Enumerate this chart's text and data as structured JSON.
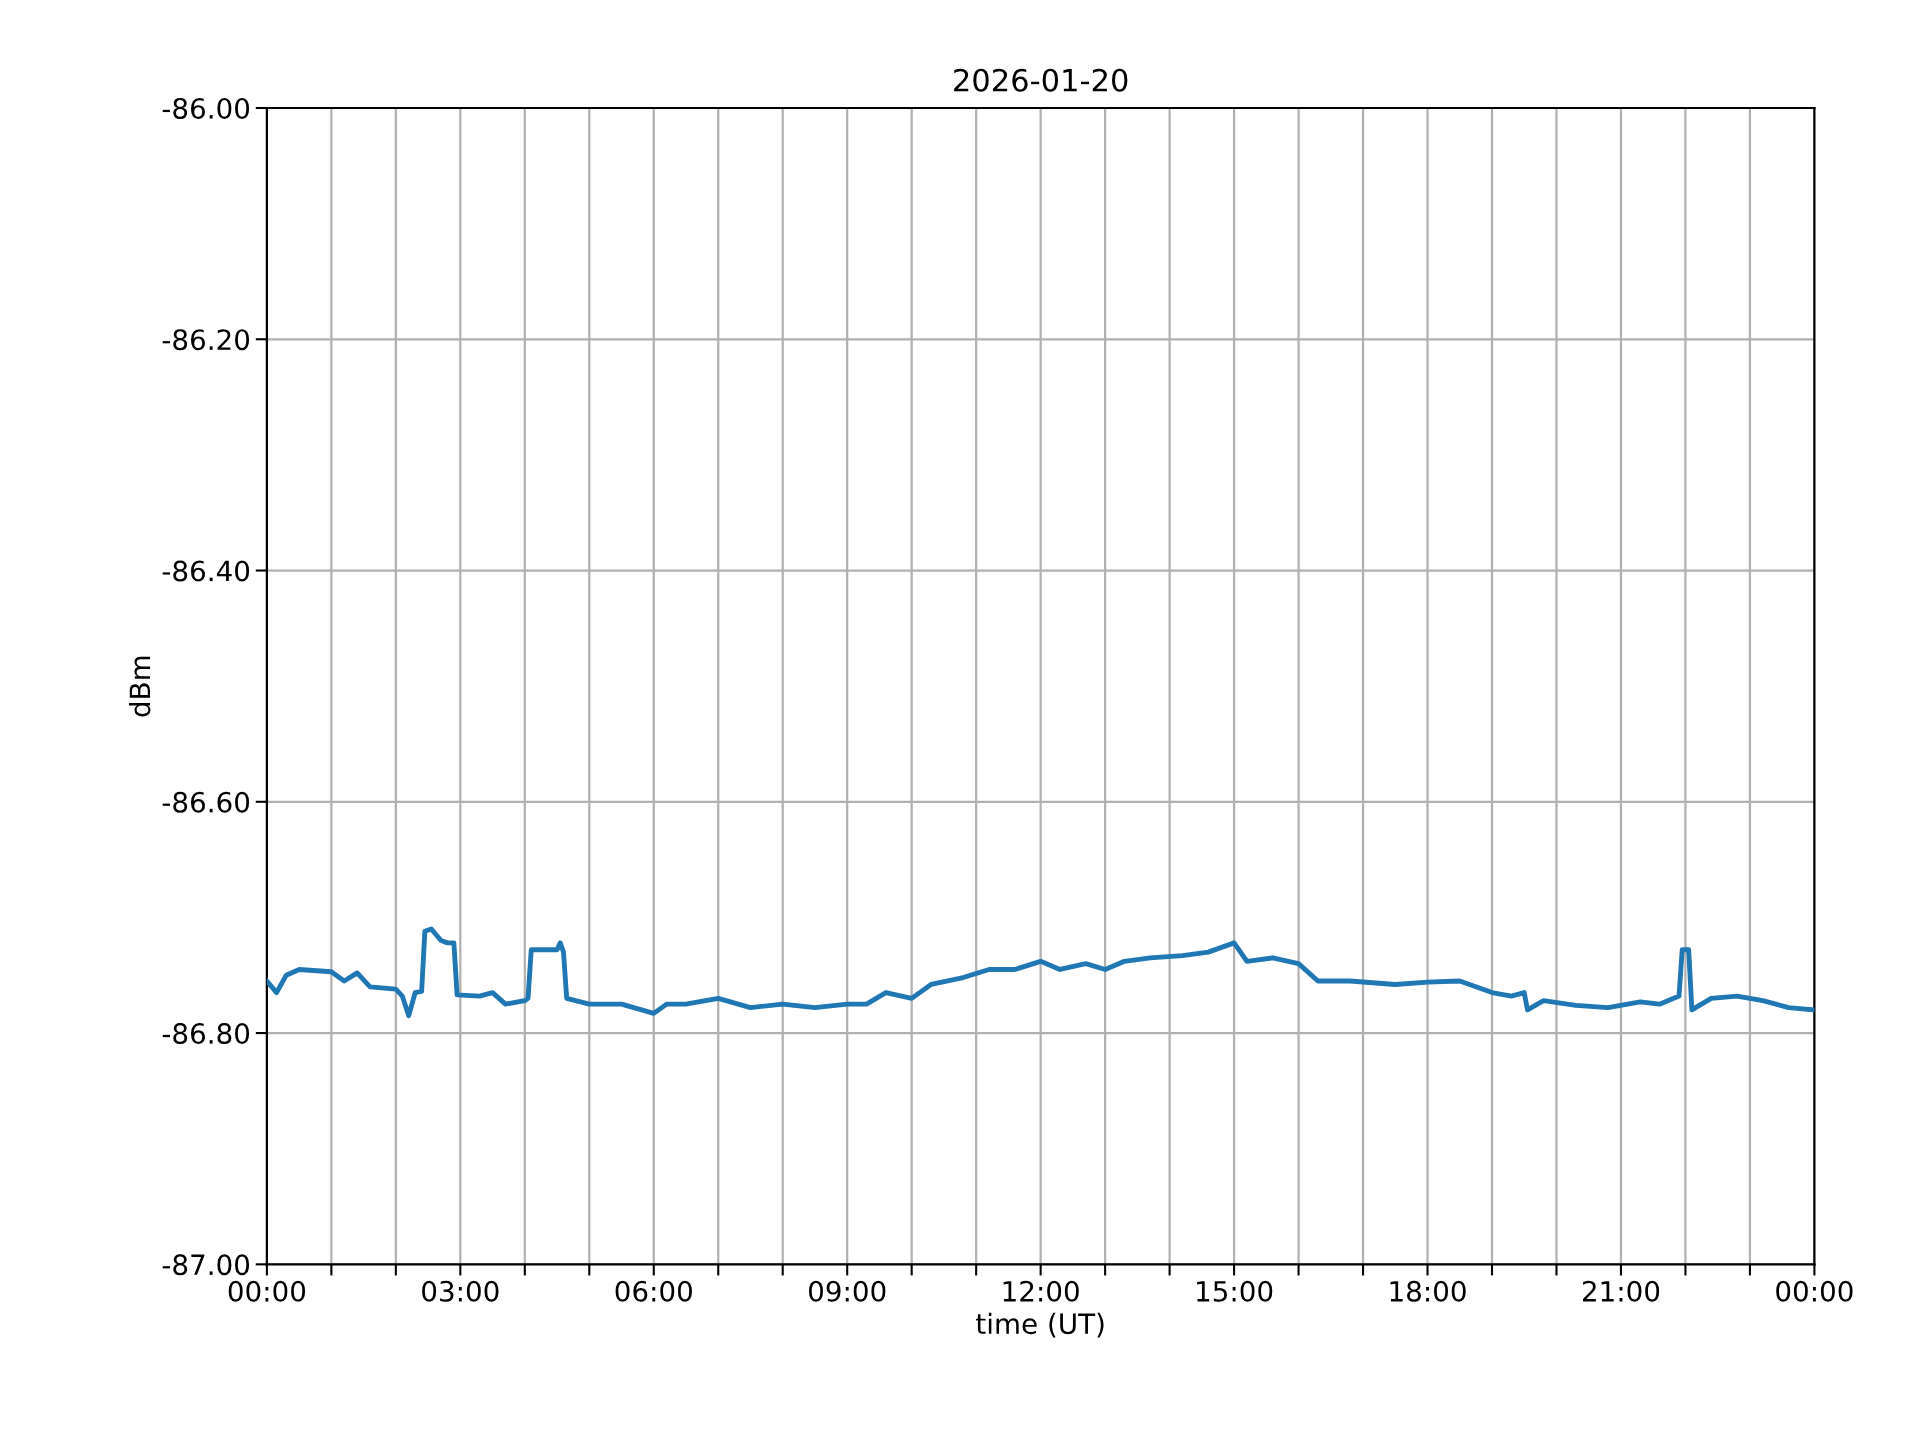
{
  "chart_data": {
    "type": "line",
    "title": "2026-01-20",
    "xlabel": "time (UT)",
    "ylabel": "dBm",
    "series": [
      {
        "color": "#1f77b4",
        "x": [
          0.0,
          0.15,
          0.3,
          0.5,
          1.0,
          1.2,
          1.4,
          1.6,
          2.0,
          2.1,
          2.2,
          2.3,
          2.4,
          2.45,
          2.55,
          2.7,
          2.8,
          2.9,
          2.95,
          3.3,
          3.5,
          3.7,
          4.0,
          4.05,
          4.1,
          4.5,
          4.55,
          4.6,
          4.65,
          5.0,
          5.5,
          6.0,
          6.2,
          6.5,
          7.0,
          7.5,
          8.0,
          8.5,
          9.0,
          9.3,
          9.6,
          10.0,
          10.3,
          10.8,
          11.2,
          11.6,
          12.0,
          12.3,
          12.7,
          13.0,
          13.3,
          13.7,
          14.2,
          14.6,
          15.0,
          15.2,
          15.6,
          16.0,
          16.3,
          16.8,
          17.5,
          18.0,
          18.5,
          19.0,
          19.3,
          19.5,
          19.55,
          19.8,
          20.3,
          20.8,
          21.3,
          21.6,
          21.9,
          21.95,
          22.05,
          22.1,
          22.4,
          22.8,
          23.2,
          23.6,
          24.0
        ],
        "values": [
          -86.755,
          -86.765,
          -86.75,
          -86.745,
          -86.747,
          -86.755,
          -86.748,
          -86.76,
          -86.762,
          -86.768,
          -86.785,
          -86.765,
          -86.764,
          -86.712,
          -86.71,
          -86.72,
          -86.722,
          -86.722,
          -86.767,
          -86.768,
          -86.765,
          -86.775,
          -86.772,
          -86.77,
          -86.728,
          -86.728,
          -86.722,
          -86.73,
          -86.77,
          -86.775,
          -86.775,
          -86.783,
          -86.775,
          -86.775,
          -86.77,
          -86.778,
          -86.775,
          -86.778,
          -86.775,
          -86.775,
          -86.765,
          -86.77,
          -86.758,
          -86.752,
          -86.745,
          -86.745,
          -86.738,
          -86.745,
          -86.74,
          -86.745,
          -86.738,
          -86.735,
          -86.733,
          -86.73,
          -86.722,
          -86.738,
          -86.735,
          -86.74,
          -86.755,
          -86.755,
          -86.758,
          -86.756,
          -86.755,
          -86.765,
          -86.768,
          -86.765,
          -86.78,
          -86.772,
          -86.776,
          -86.778,
          -86.773,
          -86.775,
          -86.768,
          -86.728,
          -86.728,
          -86.78,
          -86.77,
          -86.768,
          -86.772,
          -86.778,
          -86.78
        ]
      }
    ],
    "xlim": [
      0,
      24
    ],
    "xticks": [
      {
        "value": 0,
        "label": "00:00"
      },
      {
        "value": 1,
        "label": null
      },
      {
        "value": 2,
        "label": null
      },
      {
        "value": 3,
        "label": "03:00"
      },
      {
        "value": 4,
        "label": null
      },
      {
        "value": 5,
        "label": null
      },
      {
        "value": 6,
        "label": "06:00"
      },
      {
        "value": 7,
        "label": null
      },
      {
        "value": 8,
        "label": null
      },
      {
        "value": 9,
        "label": "09:00"
      },
      {
        "value": 10,
        "label": null
      },
      {
        "value": 11,
        "label": null
      },
      {
        "value": 12,
        "label": "12:00"
      },
      {
        "value": 13,
        "label": null
      },
      {
        "value": 14,
        "label": null
      },
      {
        "value": 15,
        "label": "15:00"
      },
      {
        "value": 16,
        "label": null
      },
      {
        "value": 17,
        "label": null
      },
      {
        "value": 18,
        "label": "18:00"
      },
      {
        "value": 19,
        "label": null
      },
      {
        "value": 20,
        "label": null
      },
      {
        "value": 21,
        "label": "21:00"
      },
      {
        "value": 22,
        "label": null
      },
      {
        "value": 23,
        "label": null
      },
      {
        "value": 24,
        "label": "00:00"
      }
    ],
    "ylim": [
      -87.0,
      -86.0
    ],
    "yticks": [
      {
        "value": -87.0,
        "label": "-87.00"
      },
      {
        "value": -86.8,
        "label": "-86.80"
      },
      {
        "value": -86.6,
        "label": "-86.60"
      },
      {
        "value": -86.4,
        "label": "-86.40"
      },
      {
        "value": -86.2,
        "label": "-86.20"
      },
      {
        "value": -86.0,
        "label": "-86.00"
      }
    ],
    "grid": true,
    "legend": false,
    "marker": "none",
    "line_style": "solid"
  }
}
